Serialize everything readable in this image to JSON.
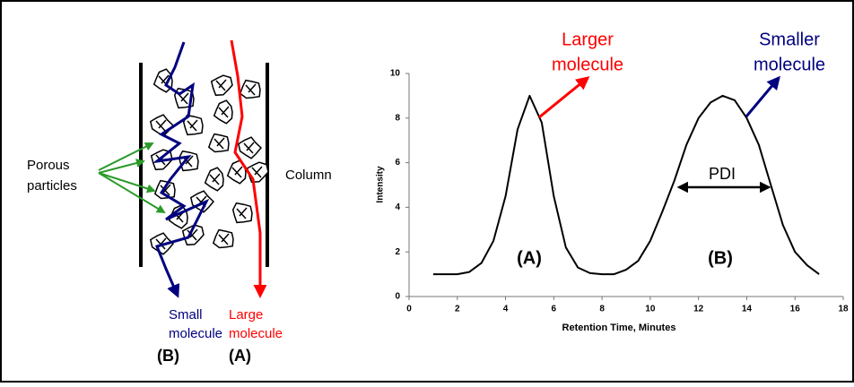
{
  "diagram": {
    "porous_label": [
      "Porous",
      "particles"
    ],
    "column_label": "Column",
    "small_label": [
      "Small",
      "molecule"
    ],
    "large_label": [
      "Large",
      "molecule"
    ],
    "small_tag": "(B)",
    "large_tag": "(A)"
  },
  "chart_data": {
    "type": "line",
    "x_label": "Retention Time, Minutes",
    "y_label": "Intensity",
    "x": [
      1,
      1.5,
      2,
      2.5,
      3,
      3.5,
      4,
      4.5,
      5,
      5.5,
      6,
      6.5,
      7,
      7.5,
      8,
      8.5,
      9,
      9.5,
      10,
      10.5,
      11,
      11.5,
      12,
      12.5,
      13,
      13.5,
      14,
      14.5,
      15,
      15.5,
      16,
      16.5,
      17
    ],
    "series": [
      {
        "color": "#000000",
        "values": [
          1,
          1,
          1,
          1.1,
          1.5,
          2.5,
          4.5,
          7.5,
          9,
          7.8,
          4.5,
          2.2,
          1.3,
          1.05,
          1,
          1,
          1.2,
          1.6,
          2.5,
          3.8,
          5.2,
          6.8,
          8,
          8.7,
          9,
          8.8,
          8,
          6.8,
          5,
          3.2,
          2,
          1.4,
          1
        ]
      }
    ],
    "xlim": [
      0,
      18
    ],
    "xticks": [
      0,
      2,
      4,
      6,
      8,
      10,
      12,
      14,
      16,
      18
    ],
    "ylim": [
      0,
      10
    ],
    "yticks": [
      0,
      2,
      4,
      6,
      8,
      10
    ],
    "annotations": [
      {
        "lines": [
          "Larger",
          "molecule"
        ],
        "color": "#ff0000"
      },
      {
        "lines": [
          "Smaller",
          "molecule"
        ],
        "color": "#000080"
      },
      {
        "lines": [
          "(A)"
        ],
        "color": "#000000"
      },
      {
        "lines": [
          "(B)"
        ],
        "color": "#000000"
      },
      {
        "lines": [
          "PDI"
        ],
        "color": "#000000"
      }
    ]
  }
}
